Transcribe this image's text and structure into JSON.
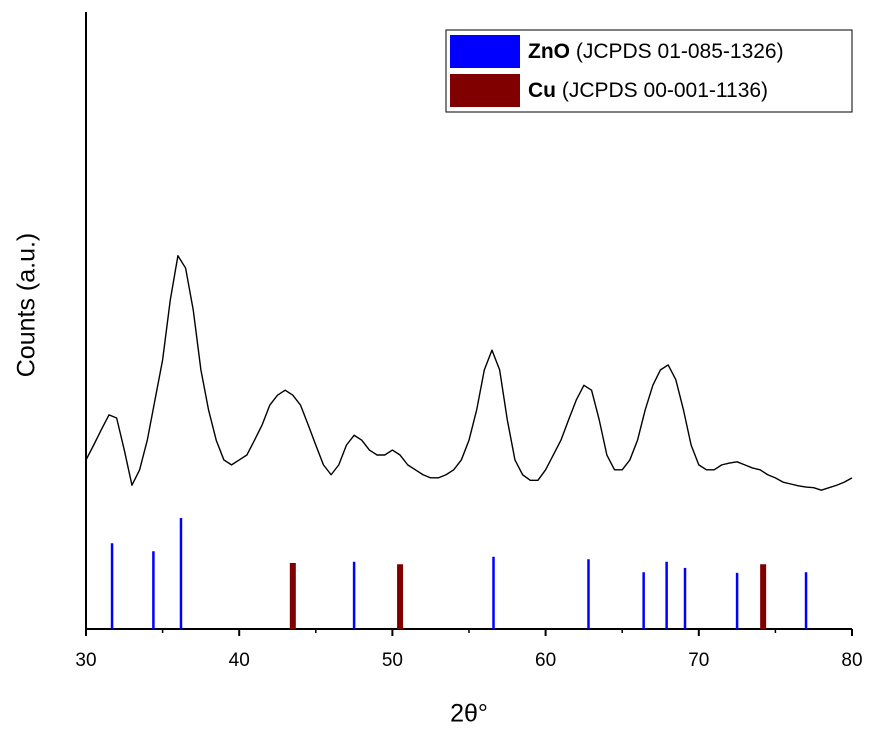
{
  "chart_data": {
    "type": "line",
    "x_label": "2θ°",
    "y_label": "Counts (a.u.)",
    "xlim": [
      30,
      80
    ],
    "ylim": [
      0,
      100
    ],
    "xticks": [
      30,
      40,
      50,
      60,
      70,
      80
    ],
    "color": "#000000",
    "x": [
      30,
      30.5,
      31,
      31.5,
      32,
      32.5,
      33,
      33.5,
      34,
      34.5,
      35,
      35.5,
      36,
      36.5,
      37,
      37.5,
      38,
      38.5,
      39,
      39.5,
      40,
      40.5,
      41,
      41.5,
      42,
      42.5,
      43,
      43.5,
      44,
      44.5,
      45,
      45.5,
      46,
      46.5,
      47,
      47.5,
      48,
      48.5,
      49,
      49.5,
      50,
      50.5,
      51,
      51.5,
      52,
      52.5,
      53,
      53.5,
      54,
      54.5,
      55,
      55.5,
      56,
      56.5,
      57,
      57.5,
      58,
      58.5,
      59,
      59.5,
      60,
      60.5,
      61,
      61.5,
      62,
      62.5,
      63,
      63.5,
      64,
      64.5,
      65,
      65.5,
      66,
      66.5,
      67,
      67.5,
      68,
      68.5,
      69,
      69.5,
      70,
      70.5,
      71,
      71.5,
      72,
      72.5,
      73,
      73.5,
      74,
      74.5,
      75,
      75.5,
      76,
      76.5,
      77,
      77.5,
      78,
      78.5,
      79,
      79.5,
      80
    ],
    "values": [
      27.4,
      29.8,
      32.3,
      34.7,
      34.2,
      29.0,
      23.3,
      25.8,
      30.6,
      37.1,
      43.6,
      53.3,
      60.5,
      58.5,
      51.7,
      42.0,
      35.5,
      30.6,
      27.4,
      26.6,
      27.4,
      28.2,
      30.6,
      33.1,
      36.3,
      37.9,
      38.7,
      37.9,
      36.3,
      33.1,
      29.8,
      26.6,
      25.0,
      26.6,
      29.8,
      31.4,
      30.6,
      29.0,
      28.2,
      28.2,
      29.0,
      28.2,
      26.6,
      25.8,
      25.0,
      24.5,
      24.5,
      25.0,
      25.8,
      27.4,
      30.6,
      35.5,
      42.0,
      45.2,
      42.0,
      33.9,
      27.4,
      25.0,
      24.1,
      24.1,
      25.8,
      28.2,
      30.6,
      33.9,
      37.1,
      39.5,
      38.7,
      33.9,
      28.2,
      25.8,
      25.8,
      27.4,
      30.6,
      35.5,
      39.5,
      42.0,
      42.8,
      40.4,
      35.5,
      29.8,
      26.6,
      25.8,
      25.8,
      26.6,
      26.9,
      27.1,
      26.6,
      26.1,
      25.8,
      25.0,
      24.5,
      23.8,
      23.5,
      23.2,
      23.0,
      22.9,
      22.5,
      22.9,
      23.3,
      23.8,
      24.5
    ],
    "references": [
      {
        "name": "ZnO",
        "card": "(JCPDS 01-085-1326)",
        "color": "#0000ff",
        "positions": [
          31.7,
          34.4,
          36.2,
          47.5,
          56.6,
          62.8,
          66.4,
          67.9,
          69.1,
          72.5,
          77.0
        ],
        "values": [
          13.9,
          12.6,
          18.0,
          10.9,
          11.7,
          11.3,
          9.2,
          10.9,
          9.9,
          9.1,
          9.2
        ]
      },
      {
        "name": "Cu",
        "card": "(JCPDS 00-001-1136)",
        "color": "#800000",
        "positions": [
          43.5,
          50.5,
          74.2
        ],
        "values": [
          10.7,
          10.5,
          10.5
        ]
      }
    ]
  }
}
